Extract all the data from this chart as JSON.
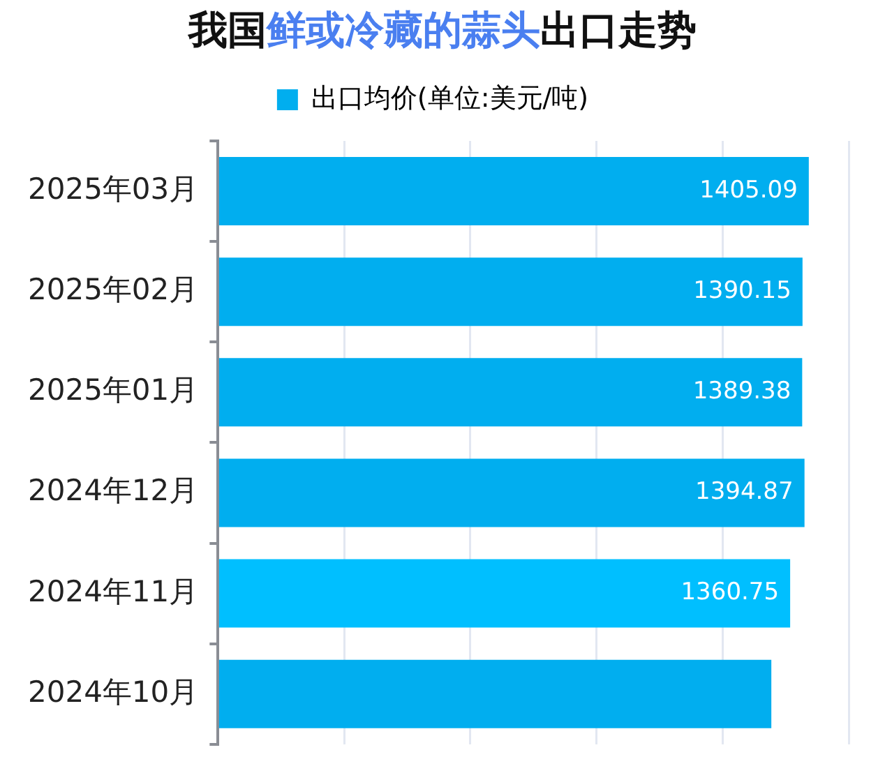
{
  "chart_data": {
    "type": "bar",
    "title": "我国鲜或冷藏的蒜头出口走势",
    "orientation": "horizontal",
    "categories": [
      "2025年03月",
      "2025年02月",
      "2025年01月",
      "2024年12月",
      "2024年11月",
      "2024年10月"
    ],
    "series": [
      {
        "name": "出口均价(单位:美元/吨)",
        "color": "#01aeef",
        "colors": [
          "#01aeef",
          "#01aeef",
          "#01aeef",
          "#01aeef",
          "#00bfff",
          "#01aeef"
        ],
        "values": [
          1405.09,
          1390.15,
          1389.38,
          1394.87,
          1360.75,
          1316
        ],
        "value_labels": [
          "1405.09",
          "1390.15",
          "1389.38",
          "1394.87",
          "1360.75",
          null
        ]
      }
    ],
    "xlim": [
      0,
      1500
    ],
    "xticks": [
      {
        "value": 0,
        "label": null
      },
      {
        "value": 300,
        "label": null
      },
      {
        "value": 600,
        "label": null
      },
      {
        "value": 900,
        "label": null
      },
      {
        "value": 1200,
        "label": null
      },
      {
        "value": 1500,
        "label": null
      }
    ],
    "grid": "x",
    "legend": "top",
    "tick_labels": "y"
  }
}
